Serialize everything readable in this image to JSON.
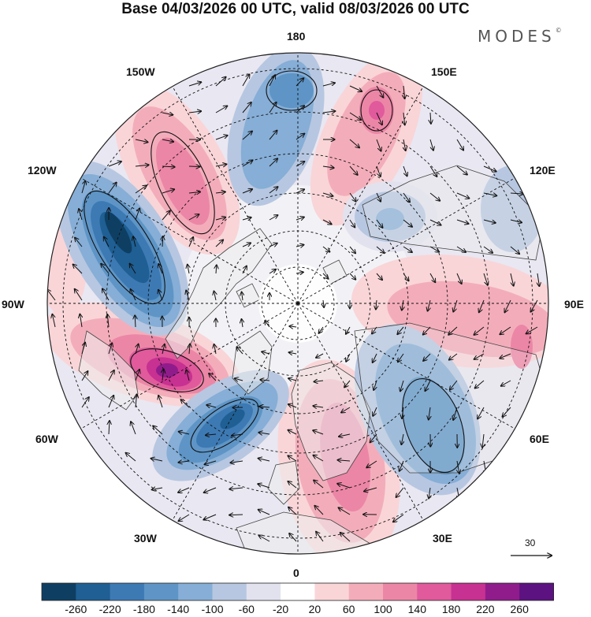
{
  "title": "Base 04/03/2026 00 UTC, valid 08/03/2026 00 UTC",
  "brand": {
    "name": "MODES",
    "mark": "©"
  },
  "longitude_labels": {
    "lon_180": "180",
    "lon_150e": "150E",
    "lon_120e": "120E",
    "lon_90e": "90E",
    "lon_60e": "60E",
    "lon_30e": "30E",
    "lon_0": "0",
    "lon_30w": "30W",
    "lon_60w": "60W",
    "lon_90w": "90W",
    "lon_120w": "120W",
    "lon_150w": "150W"
  },
  "reference_vector": {
    "label": "30"
  },
  "colorbar": {
    "colors": [
      "#0e3f63",
      "#1f5f93",
      "#3d7ab4",
      "#5e95c6",
      "#86aed6",
      "#b7c7e1",
      "#e2e2ef",
      "#ffffff",
      "#f9d5d8",
      "#f3adba",
      "#ec86a6",
      "#e05a9c",
      "#c73191",
      "#901c8c",
      "#5c1280"
    ],
    "labels": [
      "-260",
      "-220",
      "-180",
      "-140",
      "-100",
      "-60",
      "-20",
      "20",
      "60",
      "100",
      "140",
      "180",
      "220",
      "260"
    ]
  },
  "anomaly_centers": [
    {
      "name": "low-150w",
      "value": -220
    },
    {
      "name": "high-130w",
      "value": 160
    },
    {
      "name": "low-175e",
      "value": -140
    },
    {
      "name": "high-150e",
      "value": 180
    },
    {
      "name": "low-120e",
      "value": -100
    },
    {
      "name": "high-90e",
      "value": 100
    },
    {
      "name": "low-60e",
      "value": -140
    },
    {
      "name": "high-20e",
      "value": 140
    },
    {
      "name": "low-45w",
      "value": -180
    },
    {
      "name": "high-75w",
      "value": 240
    }
  ]
}
